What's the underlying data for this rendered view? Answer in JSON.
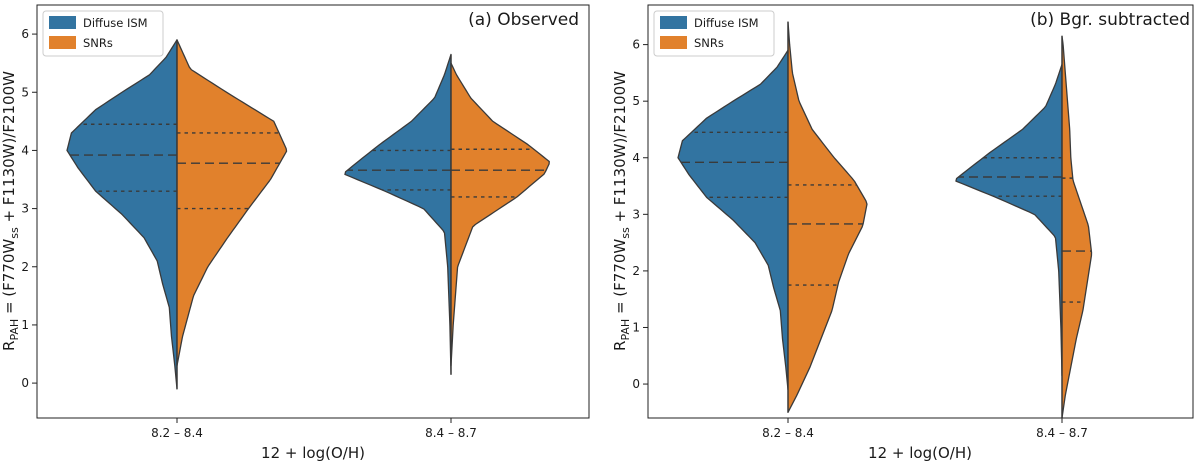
{
  "colors": {
    "diffuse": "#3274a1",
    "snr": "#e1812c",
    "outline": "#3a3a3a"
  },
  "chart_data": [
    {
      "type": "violin",
      "title": "(a) Observed",
      "xlabel": "12 + log(O/H)",
      "ylabel_main": "R",
      "ylabel_sub": "PAH",
      "ylabel_mid": " = (F770W",
      "ylabel_sub2": "ss",
      "ylabel_tail": " + F1130W)/F2100W",
      "ylim": [
        -0.6,
        6.5
      ],
      "yticks": [
        0,
        1,
        2,
        3,
        4,
        5,
        6
      ],
      "categories": [
        "8.2 – 8.4",
        "8.4 – 8.7"
      ],
      "legend": {
        "position": "top-left",
        "entries": [
          "Diffuse ISM",
          "SNRs"
        ]
      },
      "series": [
        {
          "name": "Diffuse ISM",
          "groups": [
            {
              "range": [
                -0.1,
                5.9
              ],
              "quartiles": [
                3.3,
                3.92,
                4.45
              ],
              "profile": [
                [
                  -0.1,
                  0.0
                ],
                [
                  0.3,
                  0.02
                ],
                [
                  0.8,
                  0.05
                ],
                [
                  1.3,
                  0.07
                ],
                [
                  1.7,
                  0.13
                ],
                [
                  2.1,
                  0.18
                ],
                [
                  2.5,
                  0.3
                ],
                [
                  2.9,
                  0.5
                ],
                [
                  3.3,
                  0.74
                ],
                [
                  3.7,
                  0.9
                ],
                [
                  4.0,
                  1.0
                ],
                [
                  4.3,
                  0.96
                ],
                [
                  4.7,
                  0.74
                ],
                [
                  5.0,
                  0.5
                ],
                [
                  5.3,
                  0.25
                ],
                [
                  5.6,
                  0.1
                ],
                [
                  5.9,
                  0.0
                ]
              ]
            },
            {
              "range": [
                0.15,
                5.65
              ],
              "quartiles": [
                3.32,
                3.66,
                4.0
              ],
              "profile": [
                [
                  0.15,
                  0.0
                ],
                [
                  1.0,
                  0.01
                ],
                [
                  2.0,
                  0.03
                ],
                [
                  2.6,
                  0.06
                ],
                [
                  3.0,
                  0.25
                ],
                [
                  3.3,
                  0.6
                ],
                [
                  3.6,
                  0.98
                ],
                [
                  3.8,
                  0.85
                ],
                [
                  4.1,
                  0.65
                ],
                [
                  4.5,
                  0.36
                ],
                [
                  4.9,
                  0.15
                ],
                [
                  5.3,
                  0.06
                ],
                [
                  5.65,
                  0.0
                ]
              ]
            }
          ]
        },
        {
          "name": "SNRs",
          "groups": [
            {
              "range": [
                0.3,
                5.9
              ],
              "quartiles": [
                3.0,
                3.78,
                4.3
              ],
              "profile": [
                [
                  0.3,
                  0.0
                ],
                [
                  0.8,
                  0.05
                ],
                [
                  1.5,
                  0.15
                ],
                [
                  2.0,
                  0.28
                ],
                [
                  2.5,
                  0.46
                ],
                [
                  3.0,
                  0.65
                ],
                [
                  3.5,
                  0.85
                ],
                [
                  4.0,
                  1.0
                ],
                [
                  4.5,
                  0.88
                ],
                [
                  5.0,
                  0.45
                ],
                [
                  5.4,
                  0.12
                ],
                [
                  5.9,
                  0.0
                ]
              ]
            },
            {
              "range": [
                0.3,
                5.5
              ],
              "quartiles": [
                3.2,
                3.66,
                4.02
              ],
              "profile": [
                [
                  0.3,
                  0.0
                ],
                [
                  1.0,
                  0.02
                ],
                [
                  2.0,
                  0.06
                ],
                [
                  2.7,
                  0.2
                ],
                [
                  3.2,
                  0.6
                ],
                [
                  3.6,
                  0.85
                ],
                [
                  3.8,
                  0.9
                ],
                [
                  4.1,
                  0.7
                ],
                [
                  4.5,
                  0.38
                ],
                [
                  4.9,
                  0.18
                ],
                [
                  5.3,
                  0.05
                ],
                [
                  5.5,
                  0.0
                ]
              ]
            }
          ]
        }
      ]
    },
    {
      "type": "violin",
      "title": "(b) Bgr. subtracted",
      "xlabel": "12 + log(O/H)",
      "ylabel_main": "R",
      "ylabel_sub": "PAH",
      "ylabel_mid": " = (F770W",
      "ylabel_sub2": "ss",
      "ylabel_tail": " + F1130W)/F2100W",
      "ylim": [
        -0.6,
        6.7
      ],
      "yticks": [
        0,
        1,
        2,
        3,
        4,
        5,
        6
      ],
      "categories": [
        "8.2 – 8.4",
        "8.4 – 8.7"
      ],
      "legend": {
        "position": "top-left",
        "entries": [
          "Diffuse ISM",
          "SNRs"
        ]
      },
      "series": [
        {
          "name": "Diffuse ISM",
          "groups": [
            {
              "range": [
                -0.1,
                5.9
              ],
              "quartiles": [
                3.3,
                3.92,
                4.45
              ],
              "profile": [
                [
                  -0.1,
                  0.0
                ],
                [
                  0.3,
                  0.02
                ],
                [
                  0.8,
                  0.05
                ],
                [
                  1.3,
                  0.07
                ],
                [
                  1.7,
                  0.13
                ],
                [
                  2.1,
                  0.18
                ],
                [
                  2.5,
                  0.3
                ],
                [
                  2.9,
                  0.5
                ],
                [
                  3.3,
                  0.74
                ],
                [
                  3.7,
                  0.9
                ],
                [
                  4.0,
                  1.0
                ],
                [
                  4.3,
                  0.96
                ],
                [
                  4.7,
                  0.74
                ],
                [
                  5.0,
                  0.5
                ],
                [
                  5.3,
                  0.25
                ],
                [
                  5.6,
                  0.1
                ],
                [
                  5.9,
                  0.0
                ]
              ]
            },
            {
              "range": [
                0.15,
                5.65
              ],
              "quartiles": [
                3.32,
                3.66,
                4.0
              ],
              "profile": [
                [
                  0.15,
                  0.0
                ],
                [
                  1.0,
                  0.01
                ],
                [
                  2.0,
                  0.03
                ],
                [
                  2.6,
                  0.06
                ],
                [
                  3.0,
                  0.25
                ],
                [
                  3.3,
                  0.6
                ],
                [
                  3.6,
                  0.98
                ],
                [
                  3.8,
                  0.85
                ],
                [
                  4.1,
                  0.65
                ],
                [
                  4.5,
                  0.36
                ],
                [
                  4.9,
                  0.15
                ],
                [
                  5.3,
                  0.06
                ],
                [
                  5.65,
                  0.0
                ]
              ]
            }
          ]
        },
        {
          "name": "SNRs",
          "groups": [
            {
              "range": [
                -0.5,
                6.4
              ],
              "quartiles": [
                1.75,
                2.83,
                3.52
              ],
              "profile": [
                [
                  -0.5,
                  0.0
                ],
                [
                  -0.2,
                  0.08
                ],
                [
                  0.3,
                  0.2
                ],
                [
                  0.8,
                  0.3
                ],
                [
                  1.3,
                  0.4
                ],
                [
                  1.8,
                  0.46
                ],
                [
                  2.3,
                  0.55
                ],
                [
                  2.8,
                  0.68
                ],
                [
                  3.2,
                  0.72
                ],
                [
                  3.6,
                  0.6
                ],
                [
                  4.0,
                  0.42
                ],
                [
                  4.5,
                  0.22
                ],
                [
                  5.0,
                  0.1
                ],
                [
                  5.5,
                  0.04
                ],
                [
                  6.0,
                  0.015
                ],
                [
                  6.4,
                  0.0
                ]
              ]
            },
            {
              "range": [
                -0.6,
                6.15
              ],
              "quartiles": [
                1.45,
                2.35,
                3.64
              ],
              "profile": [
                [
                  -0.6,
                  0.0
                ],
                [
                  -0.2,
                  0.03
                ],
                [
                  0.3,
                  0.08
                ],
                [
                  0.8,
                  0.13
                ],
                [
                  1.3,
                  0.19
                ],
                [
                  1.8,
                  0.23
                ],
                [
                  2.3,
                  0.27
                ],
                [
                  2.8,
                  0.24
                ],
                [
                  3.2,
                  0.17
                ],
                [
                  3.6,
                  0.1
                ],
                [
                  4.0,
                  0.08
                ],
                [
                  4.5,
                  0.07
                ],
                [
                  5.0,
                  0.05
                ],
                [
                  5.5,
                  0.03
                ],
                [
                  6.0,
                  0.01
                ],
                [
                  6.15,
                  0.0
                ]
              ]
            }
          ]
        }
      ]
    }
  ]
}
